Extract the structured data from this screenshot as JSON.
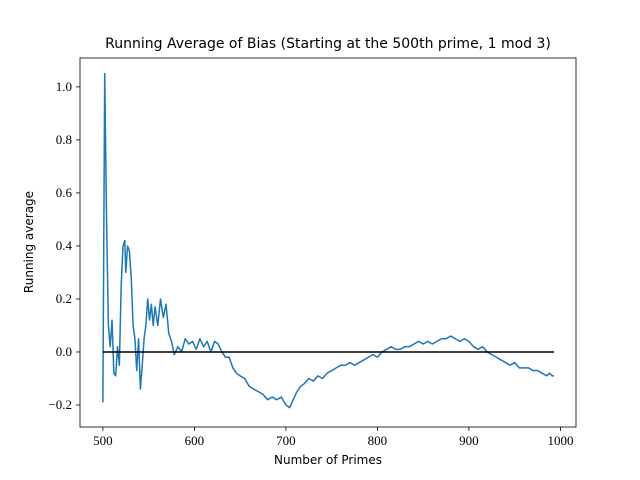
{
  "chart_data": {
    "type": "line",
    "title": "Running Average of Bias (Starting at the 500th prime, 1 mod 3)",
    "xlabel": "Number of Primes",
    "ylabel": "Running average",
    "xlim": [
      475,
      1017
    ],
    "ylim": [
      -0.283,
      1.109
    ],
    "xticks": [
      500,
      600,
      700,
      800,
      900,
      1000
    ],
    "yticks": [
      {
        "value": -0.2,
        "label": "−0.2"
      },
      {
        "value": 0,
        "label": "0.0"
      },
      {
        "value": 0.2,
        "label": "0.2"
      },
      {
        "value": 0.4,
        "label": "0.4"
      },
      {
        "value": 0.6,
        "label": "0.6"
      },
      {
        "value": 0.8,
        "label": "0.8"
      },
      {
        "value": 1.0,
        "label": "1.0"
      }
    ],
    "grid": false,
    "series": [
      {
        "color": "#1f77b4",
        "x": [
          500,
          502,
          504,
          506,
          508,
          510,
          512,
          514,
          516,
          518,
          520,
          522,
          524,
          525,
          527,
          529,
          531,
          533,
          535,
          537,
          539,
          541,
          543,
          545,
          547,
          549,
          551,
          553,
          555,
          557,
          560,
          563,
          566,
          569,
          572,
          575,
          578,
          582,
          586,
          590,
          594,
          598,
          602,
          606,
          610,
          614,
          618,
          622,
          626,
          630,
          634,
          638,
          642,
          646,
          650,
          655,
          660,
          665,
          670,
          675,
          680,
          685,
          690,
          695,
          700,
          704,
          708,
          712,
          716,
          720,
          725,
          730,
          735,
          740,
          745,
          750,
          755,
          760,
          765,
          770,
          775,
          780,
          785,
          790,
          795,
          800,
          805,
          810,
          815,
          820,
          825,
          830,
          835,
          840,
          845,
          850,
          855,
          860,
          865,
          870,
          875,
          880,
          885,
          890,
          895,
          900,
          905,
          910,
          915,
          920,
          925,
          930,
          935,
          940,
          945,
          950,
          955,
          960,
          965,
          970,
          975,
          980,
          985,
          988,
          991,
          993
        ],
        "values": [
          -0.19,
          1.05,
          0.5,
          0.1,
          0.02,
          0.12,
          -0.08,
          -0.09,
          0.02,
          -0.05,
          0.25,
          0.4,
          0.42,
          0.3,
          0.4,
          0.38,
          0.28,
          0.1,
          0.05,
          -0.07,
          0.05,
          -0.14,
          -0.05,
          0.05,
          0.1,
          0.2,
          0.12,
          0.18,
          0.1,
          0.17,
          0.1,
          0.2,
          0.13,
          0.18,
          0.07,
          0.04,
          -0.01,
          0.02,
          0.0,
          0.05,
          0.03,
          0.04,
          0.01,
          0.05,
          0.02,
          0.04,
          0.0,
          0.04,
          0.03,
          0.0,
          -0.02,
          -0.02,
          -0.06,
          -0.08,
          -0.09,
          -0.1,
          -0.13,
          -0.14,
          -0.15,
          -0.16,
          -0.18,
          -0.17,
          -0.18,
          -0.17,
          -0.2,
          -0.21,
          -0.18,
          -0.15,
          -0.13,
          -0.12,
          -0.1,
          -0.11,
          -0.09,
          -0.1,
          -0.08,
          -0.07,
          -0.06,
          -0.05,
          -0.05,
          -0.04,
          -0.05,
          -0.04,
          -0.03,
          -0.02,
          -0.01,
          -0.02,
          0.0,
          0.01,
          0.02,
          0.01,
          0.01,
          0.02,
          0.02,
          0.03,
          0.04,
          0.03,
          0.04,
          0.03,
          0.04,
          0.05,
          0.05,
          0.06,
          0.05,
          0.04,
          0.05,
          0.04,
          0.02,
          0.01,
          0.02,
          0.0,
          -0.01,
          -0.02,
          -0.03,
          -0.04,
          -0.05,
          -0.04,
          -0.06,
          -0.06,
          -0.06,
          -0.07,
          -0.07,
          -0.08,
          -0.09,
          -0.08,
          -0.09,
          -0.09
        ]
      },
      {
        "color": "#000000",
        "x": [
          500,
          993
        ],
        "values": [
          0,
          0
        ]
      }
    ]
  }
}
